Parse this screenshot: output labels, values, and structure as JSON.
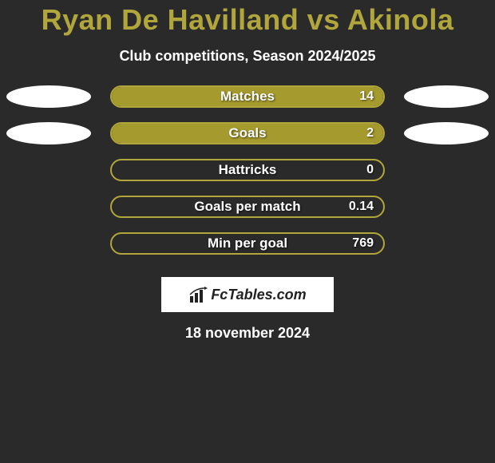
{
  "title_color": "#b0a63b",
  "title": "Ryan De Havilland vs Akinola",
  "subtitle": "Club competitions, Season 2024/2025",
  "bar_border_color": "#b0a63b",
  "bar_fill_color": "#a59a2e",
  "background_color": "#2a2a2a",
  "ellipse_color": "#ffffff",
  "rows": [
    {
      "label": "Matches",
      "value": "14",
      "fill_pct": 100,
      "left_ellipse": true,
      "right_ellipse": true
    },
    {
      "label": "Goals",
      "value": "2",
      "fill_pct": 100,
      "left_ellipse": true,
      "right_ellipse": true
    },
    {
      "label": "Hattricks",
      "value": "0",
      "fill_pct": 0,
      "left_ellipse": false,
      "right_ellipse": false
    },
    {
      "label": "Goals per match",
      "value": "0.14",
      "fill_pct": 0,
      "left_ellipse": false,
      "right_ellipse": false
    },
    {
      "label": "Min per goal",
      "value": "769",
      "fill_pct": 0,
      "left_ellipse": false,
      "right_ellipse": false
    }
  ],
  "logo_text": "FcTables.com",
  "date": "18 november 2024"
}
